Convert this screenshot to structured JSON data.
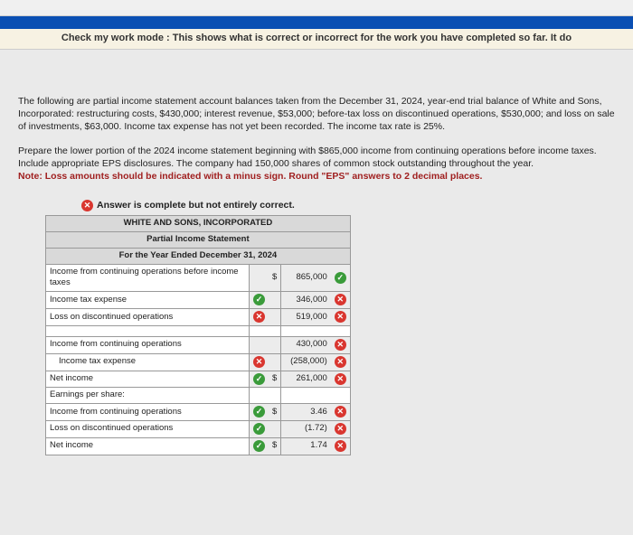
{
  "checkModeText": "Check my work mode : This shows what is correct or incorrect for the work you have completed so far. It do",
  "intro": {
    "p1": "The following are partial income statement account balances taken from the December 31, 2024, year-end trial balance of White and Sons, Incorporated: restructuring costs, $430,000; interest revenue, $53,000; before-tax loss on discontinued operations, $530,000; and loss on sale of investments, $63,000. Income tax expense has not yet been recorded. The income tax rate is 25%.",
    "p2": "Prepare the lower portion of the 2024 income statement beginning with $865,000 income from continuing operations before income taxes. Include appropriate EPS disclosures. The company had 150,000 shares of common stock outstanding throughout the year.",
    "note": "Note: Loss amounts should be indicated with a minus sign. Round \"EPS\" answers to 2 decimal places."
  },
  "answerBanner": "Answer is complete but not entirely correct.",
  "header": {
    "company": "WHITE AND SONS, INCORPORATED",
    "title": "Partial Income Statement",
    "period": "For the Year Ended December 31, 2024"
  },
  "rows": {
    "r1": {
      "label": "Income from continuing operations before income taxes",
      "cur": "$",
      "val": "865,000",
      "mark2": "check"
    },
    "r2": {
      "label": "Income tax expense",
      "mark1": "check",
      "val": "346,000",
      "mark2": "x"
    },
    "r3": {
      "label": "Loss on discontinued operations",
      "mark1": "x",
      "val": "519,000",
      "mark2": "x"
    },
    "r4": {
      "label": "Income from continuing operations",
      "val": "430,000",
      "mark2": "x"
    },
    "r5": {
      "label": "Income tax expense",
      "mark1": "x",
      "val": "(258,000)",
      "mark2": "x"
    },
    "r6": {
      "label": "Net income",
      "mark1": "check",
      "cur": "$",
      "val": "261,000",
      "mark2": "x"
    },
    "r7": {
      "label": "Earnings per share:"
    },
    "r8": {
      "label": "Income from continuing operations",
      "mark1": "check",
      "cur": "$",
      "val": "3.46",
      "mark2": "x"
    },
    "r9": {
      "label": "Loss on discontinued operations",
      "mark1": "check",
      "val": "(1.72)",
      "mark2": "x"
    },
    "r10": {
      "label": "Net income",
      "mark1": "check",
      "cur": "$",
      "val": "1.74",
      "mark2": "x"
    }
  },
  "colors": {
    "bannerBlue": "#0a4fb3",
    "checkBg": "#f7f2e3",
    "greyBg": "#d9d9d9",
    "redNote": "#a02020",
    "iconRed": "#d9362f",
    "iconGreen": "#3a9b3a"
  }
}
